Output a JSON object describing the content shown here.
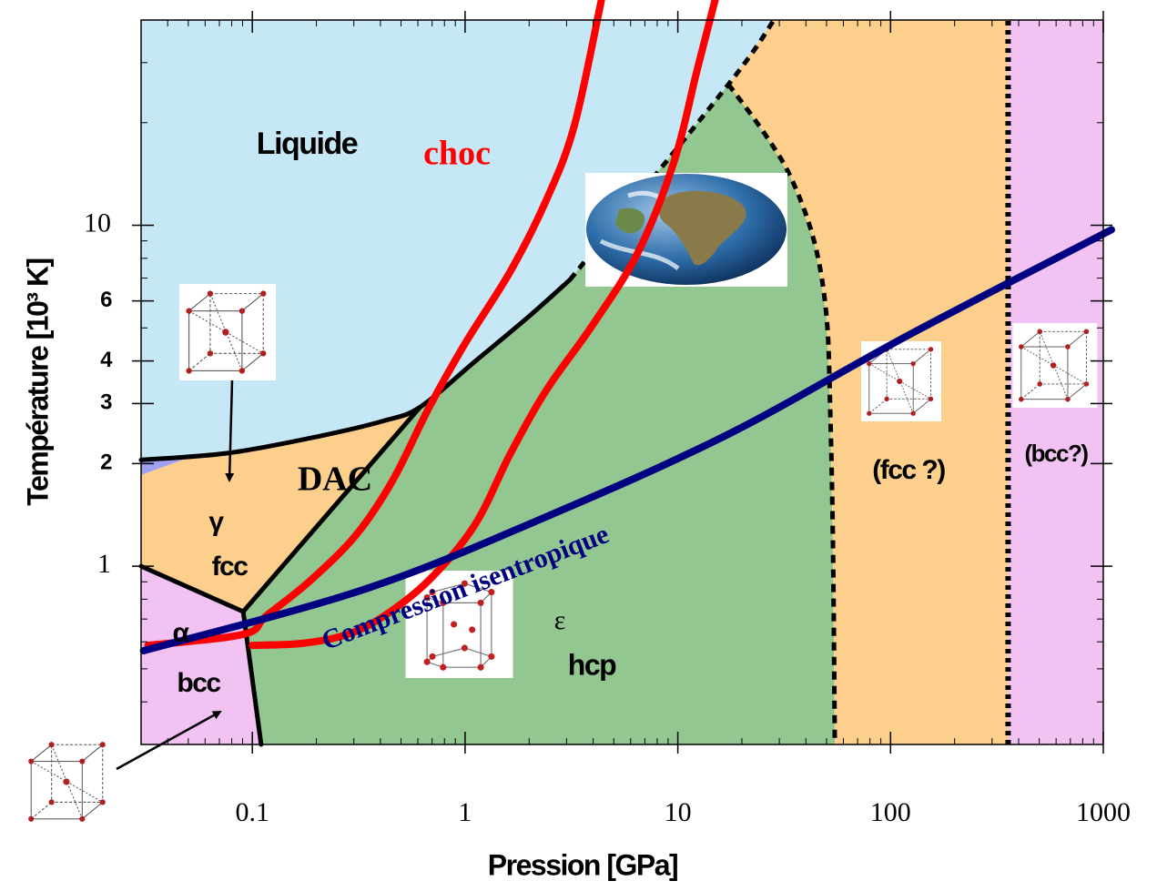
{
  "chart_data": {
    "type": "phase-diagram",
    "xlabel": "Pression [GPa]",
    "ylabel": "Température [10³ K]",
    "xscale": "log",
    "yscale": "log",
    "xlim": [
      0.03,
      1000
    ],
    "ylim": [
      0.3,
      40
    ],
    "xticks": [
      0.1,
      1,
      10,
      100,
      1000
    ],
    "xminorticks": [
      0.04,
      0.05,
      0.06,
      0.07,
      0.08,
      0.09,
      0.2,
      0.3,
      0.4,
      0.5,
      0.6,
      0.7,
      0.8,
      0.9,
      2,
      3,
      4,
      5,
      6,
      7,
      8,
      9,
      20,
      30,
      40,
      50,
      60,
      70,
      80,
      90,
      200,
      300,
      400,
      500,
      600,
      700,
      800,
      900
    ],
    "yticks": [
      1,
      2,
      3,
      4,
      6,
      10
    ],
    "yminorticks": [
      0.4,
      0.5,
      0.6,
      0.7,
      0.8,
      0.9,
      5,
      7,
      8,
      9,
      20,
      30
    ],
    "regions": [
      {
        "color": "#c6e7f5",
        "x": [
          0.03,
          28.3,
          17.3,
          3.11,
          2.0,
          1.11,
          0.615,
          0.415,
          0.209,
          0.0782,
          0.03
        ],
        "y": [
          40,
          40,
          25.9,
          6.92,
          5.41,
          3.98,
          2.93,
          2.67,
          2.41,
          2.15,
          2.05
        ]
      },
      {
        "color": "#a0a0f0",
        "x": [
          0.03,
          0.05,
          0.03
        ],
        "y": [
          2.05,
          2.08,
          1.85
        ]
      },
      {
        "color": "#fcd08c",
        "x": [
          0.03,
          0.05,
          0.0782,
          0.209,
          0.415,
          0.615,
          0.0906,
          0.03
        ],
        "y": [
          1.85,
          2.08,
          2.15,
          2.41,
          2.67,
          2.93,
          0.736,
          1.0
        ]
      },
      {
        "color": "#f2c2f2",
        "x": [
          0.03,
          0.0906,
          0.11,
          0.03
        ],
        "y": [
          1.0,
          0.736,
          0.3,
          0.3
        ]
      },
      {
        "color": "#93c792",
        "x": [
          0.0906,
          0.615,
          1.11,
          2.0,
          3.11,
          17.3,
          25.7,
          34.4,
          44.0,
          50.0,
          52.0,
          53.6,
          54.7,
          0.11
        ],
        "y": [
          0.736,
          2.93,
          3.98,
          5.41,
          6.92,
          25.9,
          18.5,
          13.6,
          8.85,
          5.41,
          2.93,
          1.17,
          0.3,
          0.3
        ]
      },
      {
        "color": "#fcd08c",
        "x": [
          28.3,
          17.3,
          25.7,
          34.4,
          44.0,
          50.0,
          52.0,
          53.6,
          54.7,
          357,
          357
        ],
        "y": [
          40,
          25.9,
          18.5,
          13.6,
          8.85,
          5.41,
          2.93,
          1.17,
          0.3,
          0.3,
          40
        ]
      },
      {
        "color": "#f2c2f2",
        "x": [
          357,
          1000,
          1000,
          357
        ],
        "y": [
          40,
          40,
          0.3,
          0.3
        ]
      }
    ],
    "boundaries": [
      {
        "style": "solid",
        "x": [
          0.03,
          0.0782,
          0.209,
          0.415,
          0.615,
          1.11,
          2.0,
          3.11
        ],
        "y": [
          2.05,
          2.15,
          2.41,
          2.67,
          2.93,
          3.98,
          5.41,
          6.92
        ]
      },
      {
        "style": "dashed",
        "x": [
          3.11,
          17.3,
          28.3
        ],
        "y": [
          6.92,
          25.9,
          40
        ]
      },
      {
        "style": "dashed",
        "x": [
          17.3,
          25.7,
          34.4,
          44.0,
          50.0,
          52.0,
          53.6,
          54.7
        ],
        "y": [
          25.9,
          18.5,
          13.6,
          8.85,
          5.41,
          2.93,
          1.17,
          0.3
        ]
      },
      {
        "style": "dotted",
        "x": [
          357,
          357
        ],
        "y": [
          0.3,
          40
        ]
      },
      {
        "style": "solid",
        "x": [
          0.0906,
          0.615
        ],
        "y": [
          0.736,
          2.93
        ]
      },
      {
        "style": "solid",
        "x": [
          0.03,
          0.0906
        ],
        "y": [
          1.0,
          0.736
        ]
      },
      {
        "style": "solid",
        "x": [
          0.0906,
          0.11
        ],
        "y": [
          0.736,
          0.3
        ]
      }
    ],
    "series": [
      {
        "name": "choc",
        "color": "#ff0000",
        "lines": [
          {
            "x": [
              0.0323,
              0.0906,
              0.116,
              0.189,
              0.309,
              0.458,
              0.679,
              1.0,
              1.64,
              2.43,
              3.27,
              4.38
            ],
            "y": [
              0.586,
              0.631,
              0.714,
              0.912,
              1.24,
              1.79,
              2.93,
              4.5,
              7.36,
              12.0,
              19.7,
              46
            ]
          },
          {
            "x": [
              0.1,
              0.172,
              0.28,
              0.415,
              0.679,
              1.11,
              1.64,
              2.43,
              3.97,
              6.49,
              9.61,
              12.3,
              15.0
            ],
            "y": [
              0.586,
              0.594,
              0.631,
              0.714,
              0.912,
              1.32,
              2.15,
              3.31,
              5.09,
              8.32,
              15.4,
              28.4,
              46
            ]
          }
        ]
      },
      {
        "name": "Compression isentropique",
        "color": "#000080",
        "lines": [
          {
            "x": [
              0.0308,
              0.341,
              2.43,
              17.3,
              123.6,
              1092
            ],
            "y": [
              0.565,
              0.858,
              1.4,
              2.44,
              4.79,
              9.7
            ]
          }
        ]
      }
    ],
    "annotations": [
      "Liquide",
      "DAC",
      "γ",
      "fcc",
      "α",
      "bcc",
      "ε",
      "hcp",
      "(fcc ?)",
      "(bcc?)"
    ]
  }
}
